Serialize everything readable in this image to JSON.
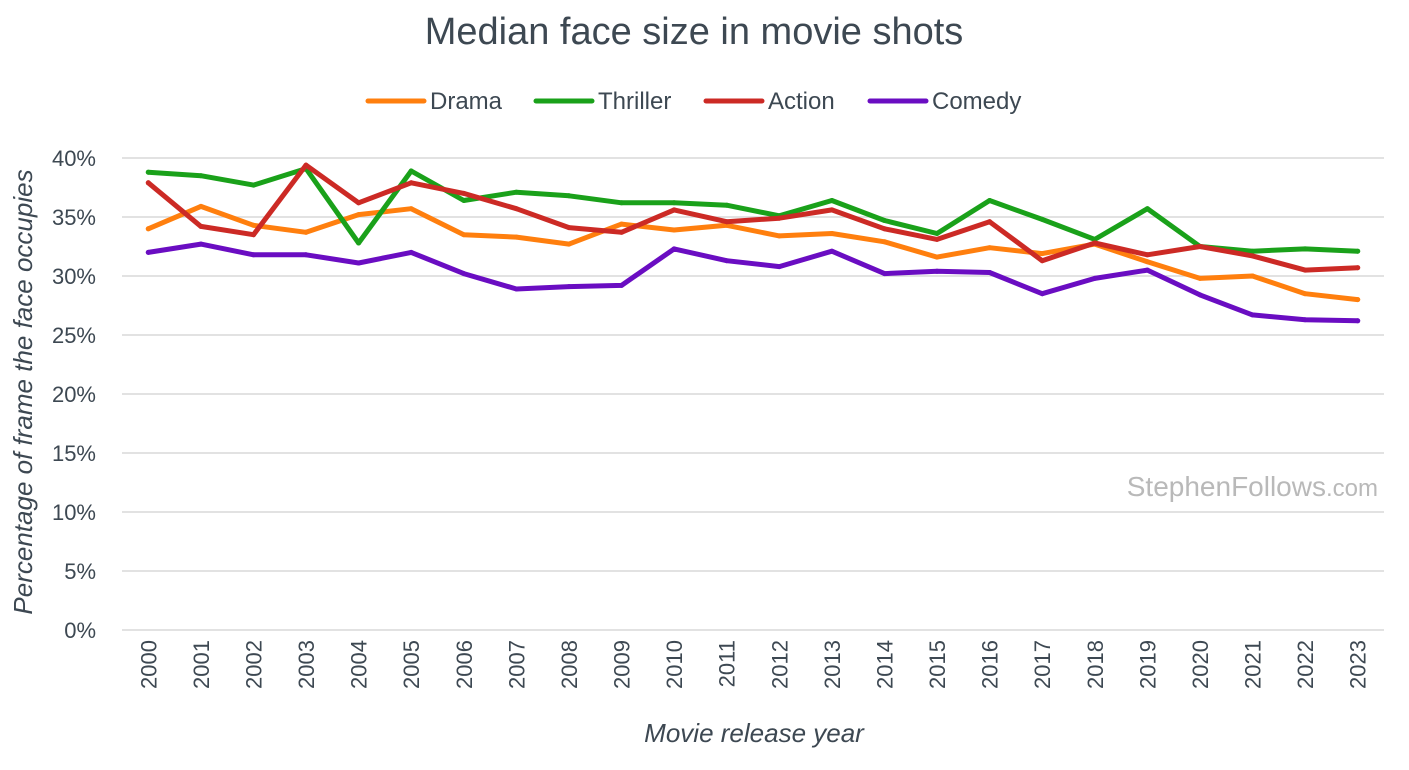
{
  "chart_data": {
    "type": "line",
    "title": "Median face size in movie shots",
    "xlabel": "Movie release year",
    "ylabel": "Percentage of frame the face occupies",
    "ylim": [
      0,
      40
    ],
    "yticks": [
      "0%",
      "5%",
      "10%",
      "15%",
      "20%",
      "25%",
      "30%",
      "35%",
      "40%"
    ],
    "ytick_values": [
      0,
      5,
      10,
      15,
      20,
      25,
      30,
      35,
      40
    ],
    "grid": true,
    "legend_position": "top-center",
    "categories": [
      "2000",
      "2001",
      "2002",
      "2003",
      "2004",
      "2005",
      "2006",
      "2007",
      "2008",
      "2009",
      "2010",
      "2011",
      "2012",
      "2013",
      "2014",
      "2015",
      "2016",
      "2017",
      "2018",
      "2019",
      "2020",
      "2021",
      "2022",
      "2023"
    ],
    "series": [
      {
        "name": "Drama",
        "color": "#ff7f0e",
        "values": [
          34.0,
          35.9,
          34.3,
          33.7,
          35.2,
          35.7,
          33.5,
          33.3,
          32.7,
          34.4,
          33.9,
          34.3,
          33.4,
          33.6,
          32.9,
          31.6,
          32.4,
          31.9,
          32.7,
          31.2,
          29.8,
          30.0,
          28.5,
          28.0
        ]
      },
      {
        "name": "Thriller",
        "color": "#1aa11a",
        "values": [
          38.8,
          38.5,
          37.7,
          39.1,
          32.8,
          38.9,
          36.4,
          37.1,
          36.8,
          36.2,
          36.2,
          36.0,
          35.1,
          36.4,
          34.7,
          33.6,
          36.4,
          34.8,
          33.1,
          35.7,
          32.5,
          32.1,
          32.3,
          32.1
        ]
      },
      {
        "name": "Action",
        "color": "#cc2a25",
        "values": [
          37.9,
          34.2,
          33.5,
          39.4,
          36.2,
          37.9,
          37.0,
          35.7,
          34.1,
          33.7,
          35.6,
          34.6,
          34.9,
          35.6,
          34.0,
          33.1,
          34.6,
          31.3,
          32.8,
          31.8,
          32.5,
          31.7,
          30.5,
          30.7
        ]
      },
      {
        "name": "Comedy",
        "color": "#6a0dc2",
        "values": [
          32.0,
          32.7,
          31.8,
          31.8,
          31.1,
          32.0,
          30.2,
          28.9,
          29.1,
          29.2,
          32.3,
          31.3,
          30.8,
          32.1,
          30.2,
          30.4,
          30.3,
          28.5,
          29.8,
          30.5,
          28.4,
          26.7,
          26.3,
          26.2
        ]
      }
    ]
  },
  "watermark": {
    "main": "StephenFollows",
    "suffix": ".com"
  }
}
